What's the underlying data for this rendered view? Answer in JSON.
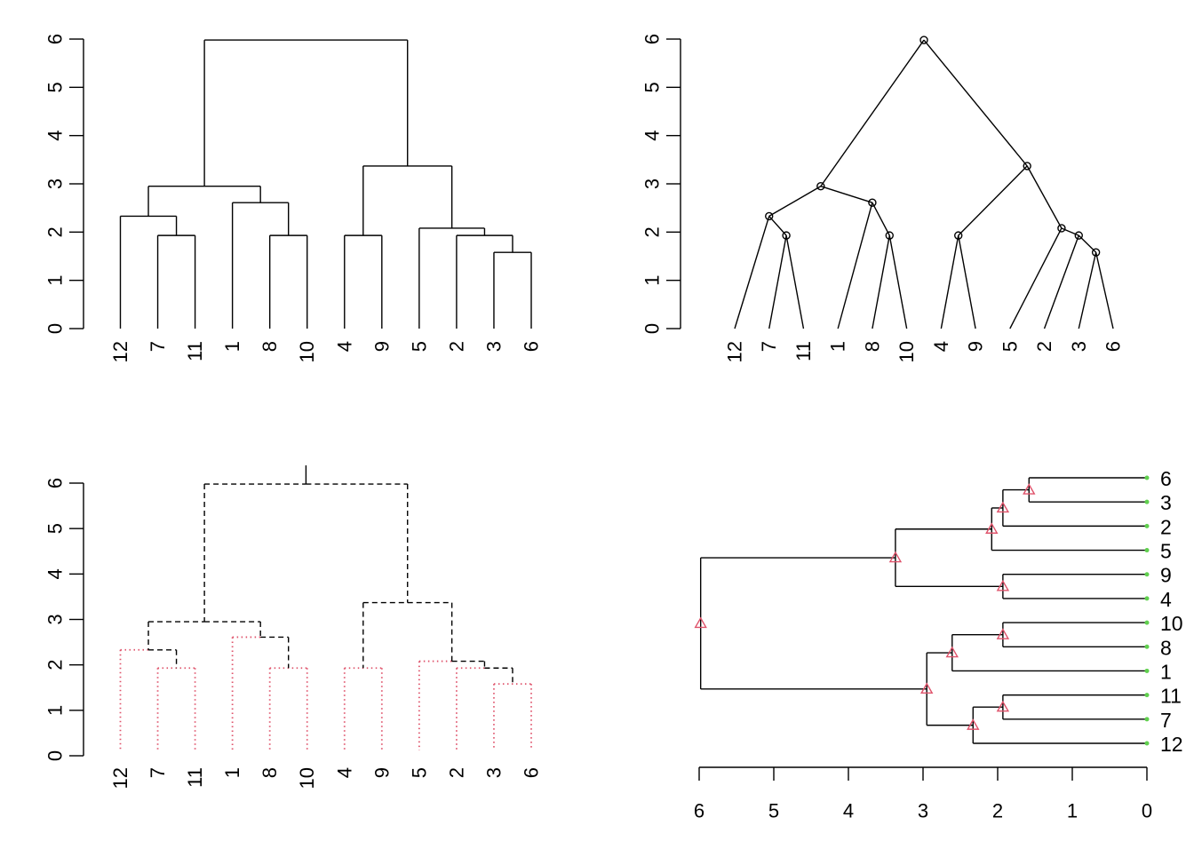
{
  "chart_data": {
    "type": "dendrogram",
    "leaf_order": [
      "12",
      "7",
      "11",
      "1",
      "8",
      "10",
      "4",
      "9",
      "5",
      "2",
      "3",
      "6"
    ],
    "merges": [
      {
        "id": "n1",
        "children": [
          "3",
          "6"
        ],
        "height": 1.58
      },
      {
        "id": "n2",
        "children": [
          "7",
          "11"
        ],
        "height": 1.93
      },
      {
        "id": "n3",
        "children": [
          "8",
          "10"
        ],
        "height": 1.93
      },
      {
        "id": "n4",
        "children": [
          "4",
          "9"
        ],
        "height": 1.93
      },
      {
        "id": "n5",
        "children": [
          "2",
          "n1"
        ],
        "height": 1.93
      },
      {
        "id": "n6",
        "children": [
          "5",
          "n5"
        ],
        "height": 2.08
      },
      {
        "id": "n7",
        "children": [
          "12",
          "n2"
        ],
        "height": 2.33
      },
      {
        "id": "n8",
        "children": [
          "1",
          "n3"
        ],
        "height": 2.61
      },
      {
        "id": "n9",
        "children": [
          "n7",
          "n8"
        ],
        "height": 2.95
      },
      {
        "id": "n10",
        "children": [
          "n4",
          "n6"
        ],
        "height": 3.37
      },
      {
        "id": "n11",
        "children": [
          "n9",
          "n10"
        ],
        "height": 5.98
      }
    ],
    "panels": [
      {
        "position": "top-left",
        "style": "rectangle",
        "orientation": "vertical",
        "axis_ticks": [
          "0",
          "1",
          "2",
          "3",
          "4",
          "5",
          "6"
        ],
        "ylim": [
          0,
          6
        ]
      },
      {
        "position": "top-right",
        "style": "triangle",
        "orientation": "vertical",
        "node_markers": "circle",
        "axis_ticks": [
          "0",
          "1",
          "2",
          "3",
          "4",
          "5",
          "6"
        ],
        "ylim": [
          0,
          6
        ]
      },
      {
        "position": "bottom-left",
        "style": "rectangle",
        "orientation": "vertical",
        "edge_style": "dashed",
        "leaf_edge_style": "dotted",
        "leaf_edge_color": "#DF536B",
        "axis_ticks": [
          "0",
          "1",
          "2",
          "3",
          "4",
          "5",
          "6"
        ],
        "ylim": [
          0,
          6
        ]
      },
      {
        "position": "bottom-right",
        "style": "rectangle",
        "orientation": "horizontal",
        "node_markers": "triangle",
        "node_marker_color": "#DF536B",
        "leaf_marker_color": "#61D04F",
        "leaf_order": [
          "12",
          "7",
          "11",
          "1",
          "8",
          "10",
          "4",
          "9",
          "5",
          "2",
          "3",
          "6"
        ],
        "axis_ticks": [
          "6",
          "5",
          "4",
          "3",
          "2",
          "1",
          "0"
        ],
        "xlim": [
          6,
          0
        ]
      }
    ]
  }
}
